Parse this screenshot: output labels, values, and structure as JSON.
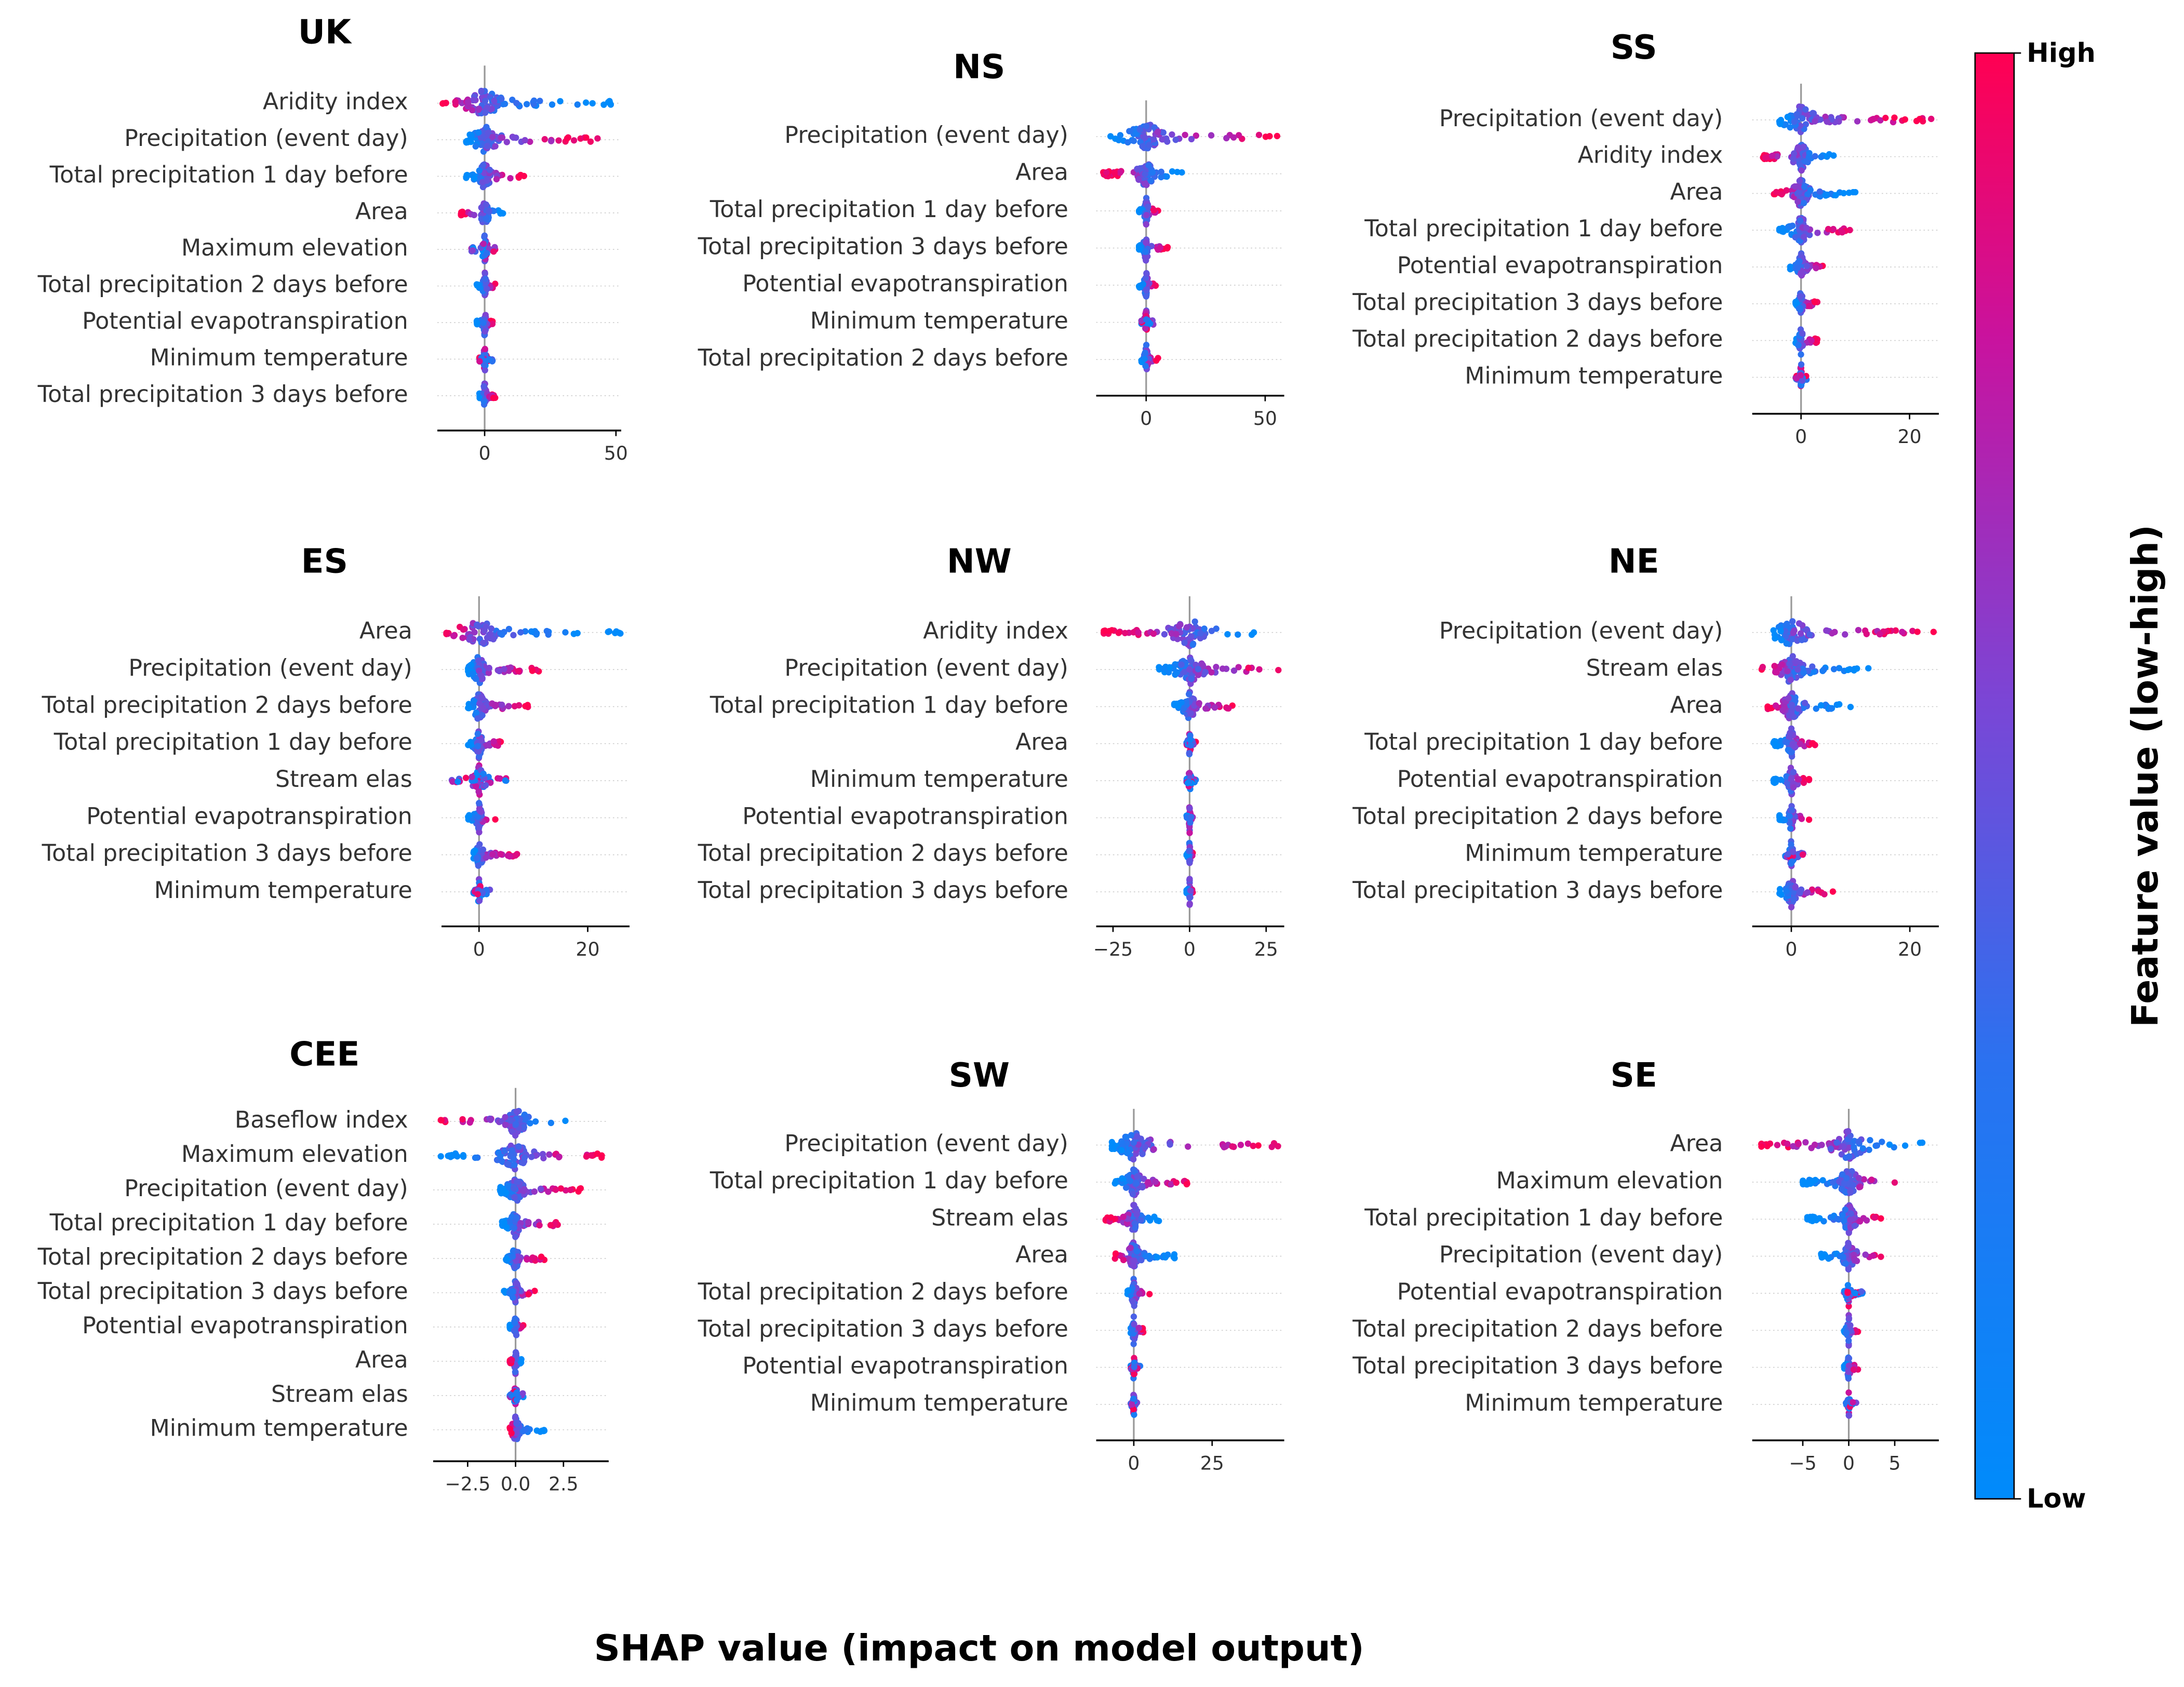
{
  "chart_data": [
    {
      "type": "scatter",
      "title": "UK",
      "xlim": [
        -18,
        52
      ],
      "xticks": [
        0,
        50
      ],
      "xtick_labels": [
        "0",
        "50"
      ],
      "features": [
        {
          "name": "Aridity index",
          "range": [
            -16,
            48
          ],
          "high": "neg"
        },
        {
          "name": "Precipitation (event day)",
          "range": [
            -7,
            43
          ],
          "high": "pos"
        },
        {
          "name": "Total precipitation 1 day before",
          "range": [
            -7,
            15
          ],
          "high": "pos"
        },
        {
          "name": "Area",
          "range": [
            -9,
            7
          ],
          "high": "neg"
        },
        {
          "name": "Maximum elevation",
          "range": [
            -5,
            4
          ],
          "high": "mixed"
        },
        {
          "name": "Total precipitation 2 days before",
          "range": [
            -3,
            4
          ],
          "high": "pos"
        },
        {
          "name": "Potential evapotranspiration",
          "range": [
            -3,
            3
          ],
          "high": "pos"
        },
        {
          "name": "Minimum temperature",
          "range": [
            -2,
            3
          ],
          "high": "mixed"
        },
        {
          "name": "Total precipitation 3 days before",
          "range": [
            -2,
            4
          ],
          "high": "pos"
        }
      ]
    },
    {
      "type": "scatter",
      "title": "NS",
      "xlim": [
        -21,
        58
      ],
      "xticks": [
        0,
        50
      ],
      "xtick_labels": [
        "0",
        "50"
      ],
      "features": [
        {
          "name": "Precipitation (event day)",
          "range": [
            -15,
            55
          ],
          "high": "pos"
        },
        {
          "name": "Area",
          "range": [
            -18,
            15
          ],
          "high": "neg"
        },
        {
          "name": "Total precipitation 1 day before",
          "range": [
            -3,
            5
          ],
          "high": "pos"
        },
        {
          "name": "Total precipitation 3 days before",
          "range": [
            -3,
            9
          ],
          "high": "pos"
        },
        {
          "name": "Potential evapotranspiration",
          "range": [
            -3,
            4
          ],
          "high": "pos"
        },
        {
          "name": "Minimum temperature",
          "range": [
            -2,
            3
          ],
          "high": "mixed"
        },
        {
          "name": "Total precipitation 2 days before",
          "range": [
            -2,
            5
          ],
          "high": "pos"
        }
      ]
    },
    {
      "type": "scatter",
      "title": "SS",
      "xlim": [
        -9,
        25.4
      ],
      "xticks": [
        0,
        20
      ],
      "xtick_labels": [
        "0",
        "20"
      ],
      "features": [
        {
          "name": "Precipitation (event day)",
          "range": [
            -4,
            24
          ],
          "high": "pos"
        },
        {
          "name": "Aridity index",
          "range": [
            -7,
            6
          ],
          "high": "neg"
        },
        {
          "name": "Area",
          "range": [
            -5,
            10
          ],
          "high": "neg"
        },
        {
          "name": "Total precipitation 1 day before",
          "range": [
            -4,
            9
          ],
          "high": "pos"
        },
        {
          "name": "Potential evapotranspiration",
          "range": [
            -2,
            4
          ],
          "high": "pos"
        },
        {
          "name": "Total precipitation 3 days before",
          "range": [
            -1,
            3
          ],
          "high": "pos"
        },
        {
          "name": "Total precipitation 2 days before",
          "range": [
            -1,
            3
          ],
          "high": "pos"
        },
        {
          "name": "Minimum temperature",
          "range": [
            -1,
            1
          ],
          "high": "mixed"
        }
      ]
    },
    {
      "type": "scatter",
      "title": "ES",
      "xlim": [
        -6.9,
        27.7
      ],
      "xticks": [
        0,
        20
      ],
      "xtick_labels": [
        "0",
        "20"
      ],
      "features": [
        {
          "name": "Area",
          "range": [
            -6,
            26
          ],
          "high": "neg"
        },
        {
          "name": "Precipitation (event day)",
          "range": [
            -2,
            11
          ],
          "high": "pos"
        },
        {
          "name": "Total precipitation 2 days before",
          "range": [
            -2,
            9
          ],
          "high": "pos"
        },
        {
          "name": "Total precipitation 1 day before",
          "range": [
            -2,
            4
          ],
          "high": "pos"
        },
        {
          "name": "Stream elas",
          "range": [
            -5,
            5
          ],
          "high": "mixed"
        },
        {
          "name": "Potential evapotranspiration",
          "range": [
            -2,
            3
          ],
          "high": "pos"
        },
        {
          "name": "Total precipitation 3 days before",
          "range": [
            -1,
            7
          ],
          "high": "pos"
        },
        {
          "name": "Minimum temperature",
          "range": [
            -1,
            2
          ],
          "high": "mixed"
        }
      ]
    },
    {
      "type": "scatter",
      "title": "NW",
      "xlim": [
        -30.5,
        30.9
      ],
      "xticks": [
        -25,
        0,
        25
      ],
      "xtick_labels": [
        "−25",
        "0",
        "25"
      ],
      "features": [
        {
          "name": "Aridity index",
          "range": [
            -28,
            21
          ],
          "high": "neg"
        },
        {
          "name": "Precipitation (event day)",
          "range": [
            -10,
            29
          ],
          "high": "pos"
        },
        {
          "name": "Total precipitation 1 day before",
          "range": [
            -5,
            14
          ],
          "high": "pos"
        },
        {
          "name": "Area",
          "range": [
            -1,
            2
          ],
          "high": "mixed"
        },
        {
          "name": "Minimum temperature",
          "range": [
            -1,
            2
          ],
          "high": "mixed"
        },
        {
          "name": "Potential evapotranspiration",
          "range": [
            -1,
            1
          ],
          "high": "mixed"
        },
        {
          "name": "Total precipitation 2 days before",
          "range": [
            -1,
            1
          ],
          "high": "pos"
        },
        {
          "name": "Total precipitation 3 days before",
          "range": [
            -1,
            1
          ],
          "high": "pos"
        }
      ]
    },
    {
      "type": "scatter",
      "title": "NE",
      "xlim": [
        -6.6,
        24.9
      ],
      "xticks": [
        0,
        20
      ],
      "xtick_labels": [
        "0",
        "20"
      ],
      "features": [
        {
          "name": "Precipitation (event day)",
          "range": [
            -3,
            24
          ],
          "high": "pos"
        },
        {
          "name": "Stream elas",
          "range": [
            -5,
            13
          ],
          "high": "neg"
        },
        {
          "name": "Area",
          "range": [
            -4,
            10
          ],
          "high": "neg"
        },
        {
          "name": "Total precipitation 1 day before",
          "range": [
            -3,
            4
          ],
          "high": "pos"
        },
        {
          "name": "Potential evapotranspiration",
          "range": [
            -3,
            3
          ],
          "high": "pos"
        },
        {
          "name": "Total precipitation 2 days before",
          "range": [
            -2,
            3
          ],
          "high": "pos"
        },
        {
          "name": "Minimum temperature",
          "range": [
            -1,
            2
          ],
          "high": "mixed"
        },
        {
          "name": "Total precipitation 3 days before",
          "range": [
            -2,
            7
          ],
          "high": "pos"
        }
      ]
    },
    {
      "type": "scatter",
      "title": "CEE",
      "xlim": [
        -4.3,
        4.86
      ],
      "xticks": [
        -2.5,
        0,
        2.5
      ],
      "xtick_labels": [
        "−2.5",
        "0.0",
        "2.5"
      ],
      "features": [
        {
          "name": "Baseflow index",
          "range": [
            -3.9,
            2.6
          ],
          "high": "neg"
        },
        {
          "name": "Maximum elevation",
          "range": [
            -3.9,
            4.5
          ],
          "high": "pos"
        },
        {
          "name": "Precipitation (event day)",
          "range": [
            -0.8,
            3.4
          ],
          "high": "pos"
        },
        {
          "name": "Total precipitation 1 day before",
          "range": [
            -0.7,
            2.2
          ],
          "high": "pos"
        },
        {
          "name": "Total precipitation 2 days before",
          "range": [
            -0.5,
            1.5
          ],
          "high": "pos"
        },
        {
          "name": "Total precipitation 3 days before",
          "range": [
            -0.6,
            1.0
          ],
          "high": "pos"
        },
        {
          "name": "Potential evapotranspiration",
          "range": [
            -0.3,
            0.4
          ],
          "high": "pos"
        },
        {
          "name": "Area",
          "range": [
            -0.3,
            0.3
          ],
          "high": "neg"
        },
        {
          "name": "Stream elas",
          "range": [
            -0.3,
            0.4
          ],
          "high": "mixed"
        },
        {
          "name": "Minimum temperature",
          "range": [
            -0.3,
            1.5
          ],
          "high": "neg"
        }
      ]
    },
    {
      "type": "scatter",
      "title": "SW",
      "xlim": [
        -12,
        48
      ],
      "xticks": [
        0,
        25
      ],
      "xtick_labels": [
        "0",
        "25"
      ],
      "features": [
        {
          "name": "Precipitation (event day)",
          "range": [
            -7,
            46
          ],
          "high": "pos"
        },
        {
          "name": "Total precipitation 1 day before",
          "range": [
            -6,
            17
          ],
          "high": "pos"
        },
        {
          "name": "Stream elas",
          "range": [
            -9,
            8
          ],
          "high": "neg"
        },
        {
          "name": "Area",
          "range": [
            -6,
            13
          ],
          "high": "neg"
        },
        {
          "name": "Total precipitation 2 days before",
          "range": [
            -2,
            5
          ],
          "high": "pos"
        },
        {
          "name": "Total precipitation 3 days before",
          "range": [
            -1,
            3
          ],
          "high": "pos"
        },
        {
          "name": "Potential evapotranspiration",
          "range": [
            -1,
            2
          ],
          "high": "mixed"
        },
        {
          "name": "Minimum temperature",
          "range": [
            -1,
            1
          ],
          "high": "mixed"
        }
      ]
    },
    {
      "type": "scatter",
      "title": "SE",
      "xlim": [
        -10.5,
        9.8
      ],
      "xticks": [
        -5,
        0,
        5
      ],
      "xtick_labels": [
        "−5",
        "0",
        "5"
      ],
      "features": [
        {
          "name": "Area",
          "range": [
            -9.5,
            8
          ],
          "high": "neg"
        },
        {
          "name": "Maximum elevation",
          "range": [
            -5,
            5
          ],
          "high": "pos"
        },
        {
          "name": "Total precipitation 1 day before",
          "range": [
            -4.5,
            3.5
          ],
          "high": "pos"
        },
        {
          "name": "Precipitation (event day)",
          "range": [
            -3,
            3.5
          ],
          "high": "pos"
        },
        {
          "name": "Potential evapotranspiration",
          "range": [
            -0.5,
            1.5
          ],
          "high": "mixed"
        },
        {
          "name": "Total precipitation 2 days before",
          "range": [
            -0.5,
            1
          ],
          "high": "pos"
        },
        {
          "name": "Total precipitation 3 days before",
          "range": [
            -0.5,
            1
          ],
          "high": "pos"
        },
        {
          "name": "Minimum temperature",
          "range": [
            -0.3,
            0.8
          ],
          "high": "mixed"
        }
      ]
    }
  ],
  "xlabel": "SHAP value (impact on model output)",
  "colorbar": {
    "label": "Feature value (low-high)",
    "high_label": "High",
    "low_label": "Low",
    "low_color": "#008bfb",
    "high_color": "#ff0052"
  }
}
